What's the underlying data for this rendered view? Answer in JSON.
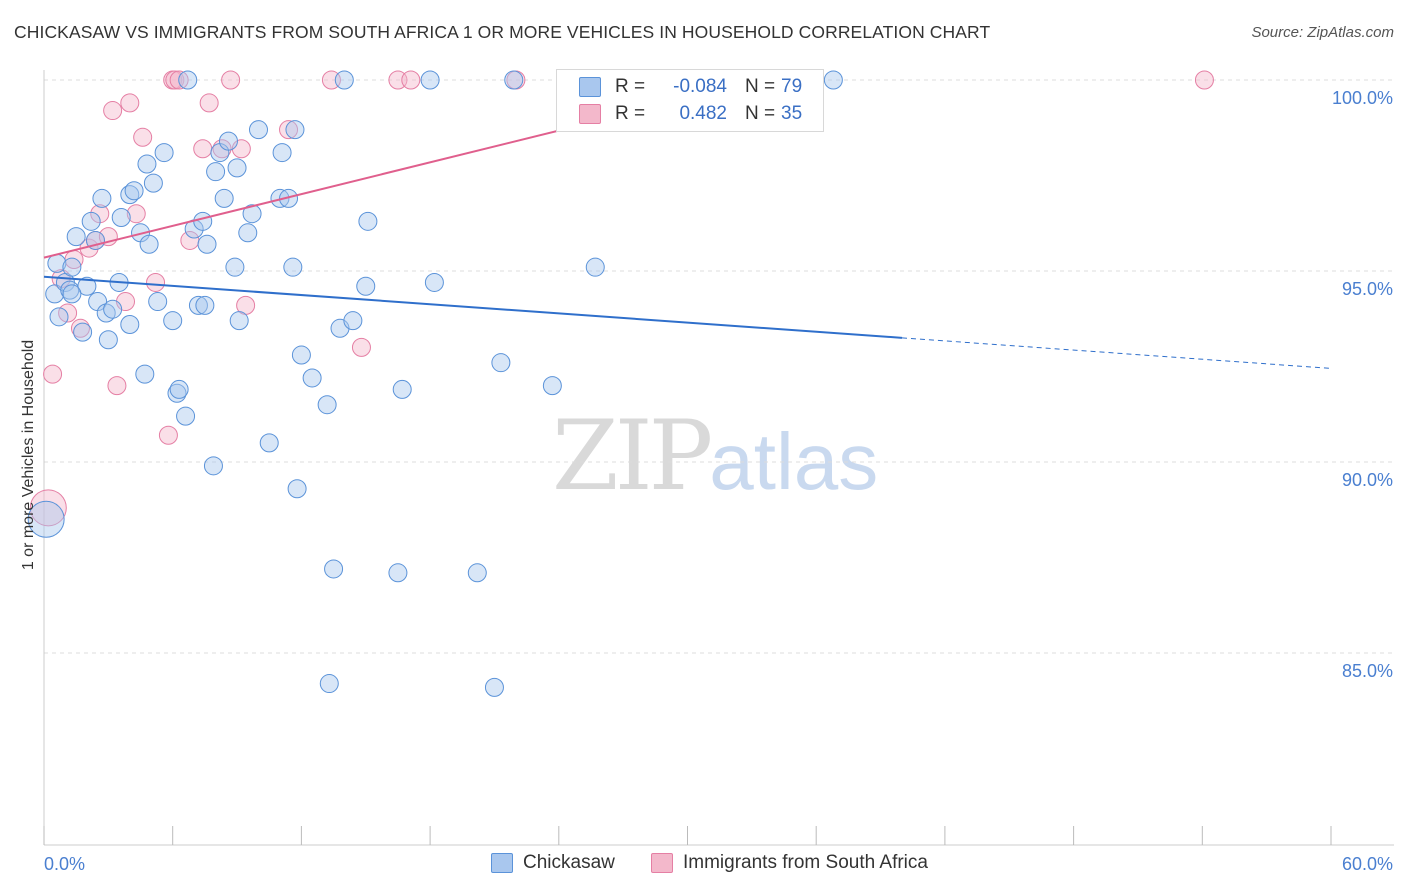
{
  "header": {
    "title": "CHICKASAW VS IMMIGRANTS FROM SOUTH AFRICA 1 OR MORE VEHICLES IN HOUSEHOLD CORRELATION CHART",
    "source": "Source: ZipAtlas.com"
  },
  "watermark": {
    "zip": "ZIP",
    "atlas": "atlas"
  },
  "legend": {
    "rows": [
      {
        "r_label": "R =",
        "r_value": "-0.084",
        "n_label": "N =",
        "n_value": "79"
      },
      {
        "r_label": "R =",
        "r_value": "0.482",
        "n_label": "N =",
        "n_value": "35"
      }
    ]
  },
  "colors": {
    "blue": "#5b93d9",
    "blue_fill": "#a9c7ee",
    "pink": "#e57fa4",
    "pink_fill": "#f3b8cb",
    "blue_line": "#2f6fcb",
    "pink_line": "#e05f8d"
  },
  "chart_data": {
    "type": "scatter",
    "title": "CHICKASAW VS IMMIGRANTS FROM SOUTH AFRICA 1 OR MORE VEHICLES IN HOUSEHOLD CORRELATION CHART",
    "xlabel": "",
    "ylabel": "1 or more Vehicles in Household",
    "xlim": [
      0,
      60
    ],
    "ylim": [
      80.5,
      100.5
    ],
    "x_tick_labels": [
      "0.0%",
      "60.0%"
    ],
    "y_ticks": [
      85,
      90,
      95,
      100
    ],
    "y_tick_labels": [
      "85.0%",
      "90.0%",
      "95.0%",
      "100.0%"
    ],
    "grid": true,
    "series": [
      {
        "name": "Chickasaw",
        "color": "blue",
        "r": -0.084,
        "n": 79,
        "trend": {
          "x0": 0,
          "y0": 94.85,
          "x1": 40,
          "y1": 93.25,
          "dashed_to_x": 60,
          "dashed_to_y": 92.45
        },
        "points": [
          [
            0.5,
            94.4
          ],
          [
            0.6,
            95.2
          ],
          [
            0.7,
            93.8
          ],
          [
            1.0,
            94.7
          ],
          [
            1.2,
            94.5
          ],
          [
            1.3,
            95.1
          ],
          [
            1.5,
            95.9
          ],
          [
            1.8,
            93.4
          ],
          [
            2.0,
            94.6
          ],
          [
            2.2,
            96.3
          ],
          [
            2.4,
            95.8
          ],
          [
            2.5,
            94.2
          ],
          [
            2.7,
            96.9
          ],
          [
            2.9,
            93.9
          ],
          [
            3.0,
            93.2
          ],
          [
            3.2,
            94.0
          ],
          [
            3.5,
            94.7
          ],
          [
            3.6,
            96.4
          ],
          [
            4.0,
            93.6
          ],
          [
            4.0,
            97.0
          ],
          [
            4.2,
            97.1
          ],
          [
            4.5,
            96.0
          ],
          [
            4.7,
            92.3
          ],
          [
            4.8,
            97.8
          ],
          [
            4.9,
            95.7
          ],
          [
            5.1,
            97.3
          ],
          [
            5.3,
            94.2
          ],
          [
            5.6,
            98.1
          ],
          [
            6.0,
            93.7
          ],
          [
            6.2,
            91.8
          ],
          [
            6.3,
            91.9
          ],
          [
            6.6,
            91.2
          ],
          [
            6.7,
            100.0
          ],
          [
            7.0,
            96.1
          ],
          [
            7.2,
            94.1
          ],
          [
            7.4,
            96.3
          ],
          [
            7.5,
            94.1
          ],
          [
            7.6,
            95.7
          ],
          [
            7.9,
            89.9
          ],
          [
            8.0,
            97.6
          ],
          [
            8.2,
            98.1
          ],
          [
            8.4,
            96.9
          ],
          [
            8.6,
            98.4
          ],
          [
            8.9,
            95.1
          ],
          [
            9.0,
            97.7
          ],
          [
            9.1,
            93.7
          ],
          [
            9.5,
            96.0
          ],
          [
            9.7,
            96.5
          ],
          [
            10.0,
            98.7
          ],
          [
            10.5,
            90.5
          ],
          [
            11.0,
            96.9
          ],
          [
            11.1,
            98.1
          ],
          [
            11.4,
            96.9
          ],
          [
            11.6,
            95.1
          ],
          [
            11.7,
            98.7
          ],
          [
            11.8,
            89.3
          ],
          [
            12.0,
            92.8
          ],
          [
            12.5,
            92.2
          ],
          [
            13.2,
            91.5
          ],
          [
            13.3,
            84.2
          ],
          [
            13.5,
            87.2
          ],
          [
            13.8,
            93.5
          ],
          [
            14.0,
            100.0
          ],
          [
            14.4,
            93.7
          ],
          [
            15.0,
            94.6
          ],
          [
            15.1,
            96.3
          ],
          [
            16.5,
            87.1
          ],
          [
            16.7,
            91.9
          ],
          [
            18.0,
            100.0
          ],
          [
            18.2,
            94.7
          ],
          [
            20.2,
            87.1
          ],
          [
            21.0,
            84.1
          ],
          [
            21.3,
            92.6
          ],
          [
            21.9,
            100.0
          ],
          [
            23.7,
            92.0
          ],
          [
            25.7,
            95.1
          ],
          [
            36.8,
            100.0
          ],
          [
            0.1,
            88.5
          ],
          [
            1.3,
            94.4
          ]
        ]
      },
      {
        "name": "Immigrants from South Africa",
        "color": "pink",
        "r": 0.482,
        "n": 35,
        "trend": {
          "x0": 0,
          "y0": 95.35,
          "x1": 35,
          "y1": 100.2
        },
        "points": [
          [
            0.2,
            88.8
          ],
          [
            0.4,
            92.3
          ],
          [
            0.8,
            94.8
          ],
          [
            1.1,
            93.9
          ],
          [
            1.4,
            95.3
          ],
          [
            1.7,
            93.5
          ],
          [
            2.1,
            95.6
          ],
          [
            2.4,
            95.8
          ],
          [
            2.6,
            96.5
          ],
          [
            3.0,
            95.9
          ],
          [
            3.2,
            99.2
          ],
          [
            3.4,
            92.0
          ],
          [
            3.8,
            94.2
          ],
          [
            4.0,
            99.4
          ],
          [
            4.3,
            96.5
          ],
          [
            4.6,
            98.5
          ],
          [
            5.2,
            94.7
          ],
          [
            5.8,
            90.7
          ],
          [
            6.0,
            100.0
          ],
          [
            6.1,
            100.0
          ],
          [
            6.3,
            100.0
          ],
          [
            6.8,
            95.8
          ],
          [
            7.4,
            98.2
          ],
          [
            7.7,
            99.4
          ],
          [
            8.3,
            98.2
          ],
          [
            8.7,
            100.0
          ],
          [
            9.2,
            98.2
          ],
          [
            9.4,
            94.1
          ],
          [
            11.4,
            98.7
          ],
          [
            13.4,
            100.0
          ],
          [
            14.8,
            93.0
          ],
          [
            16.5,
            100.0
          ],
          [
            17.1,
            100.0
          ],
          [
            22.0,
            100.0
          ],
          [
            54.1,
            100.0
          ]
        ]
      }
    ]
  },
  "bottom_legend": {
    "items": [
      {
        "label": "Chickasaw"
      },
      {
        "label": "Immigrants from South Africa"
      }
    ]
  }
}
